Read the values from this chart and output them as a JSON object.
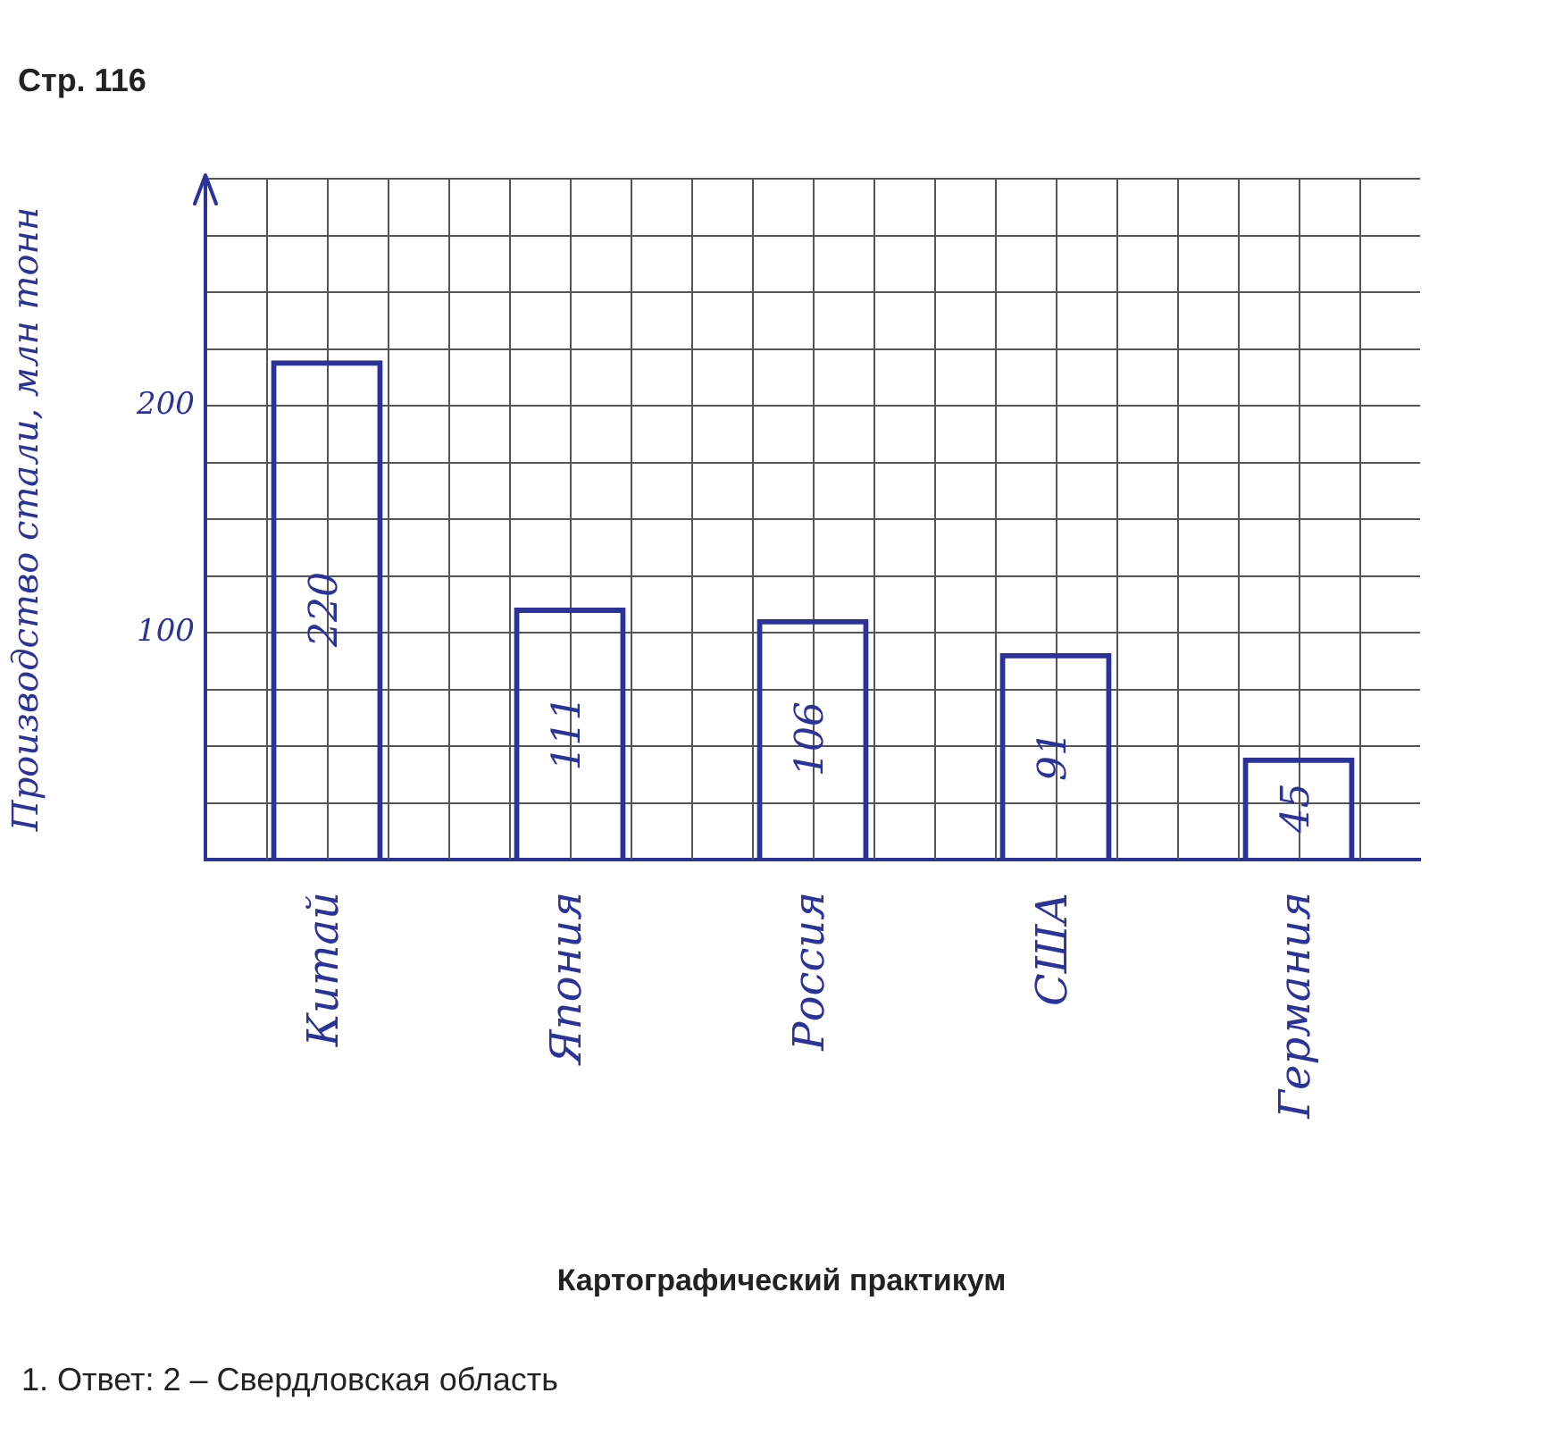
{
  "chart_data": {
    "type": "bar",
    "ylabel": "Производство стали, млн тонн",
    "categories": [
      "Китай",
      "Япония",
      "Россия",
      "США",
      "Германия"
    ],
    "values": [
      220,
      111,
      106,
      91,
      45
    ],
    "color": "#2b3399",
    "ylim": [
      0,
      300
    ],
    "yticks": [
      {
        "value": 0,
        "label": null
      },
      {
        "value": 25,
        "label": null
      },
      {
        "value": 50,
        "label": null
      },
      {
        "value": 75,
        "label": null
      },
      100,
      {
        "value": 125,
        "label": null
      },
      {
        "value": 150,
        "label": null
      },
      {
        "value": 175,
        "label": null
      },
      200,
      {
        "value": 225,
        "label": null
      },
      {
        "value": 250,
        "label": null
      },
      {
        "value": 275,
        "label": null
      },
      {
        "value": 300,
        "label": null
      }
    ],
    "grid": true,
    "data_labels": true,
    "annotations": [
      "Стр. 116",
      "Картографический практикум",
      "1. Ответ: 2 – Свердловская область"
    ]
  }
}
